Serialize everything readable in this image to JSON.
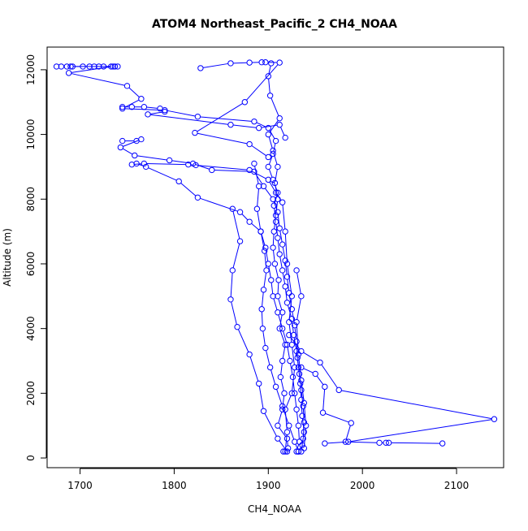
{
  "chart_data": {
    "type": "line",
    "title": "ATOM4 Northeast_Pacific_2 CH4_NOAA",
    "xlabel": "CH4_NOAA",
    "ylabel": "Altitude (m)",
    "xlim": [
      1665,
      2150
    ],
    "ylim": [
      -300,
      12700
    ],
    "xticks": [
      1700,
      1800,
      1900,
      2000,
      2100
    ],
    "yticks": [
      0,
      2000,
      4000,
      6000,
      8000,
      10000,
      12000
    ],
    "grid": false,
    "color": "#0000ff",
    "marker": "open-circle",
    "series": [
      {
        "values": [
          {
            "x": 1916,
            "y": 200
          },
          {
            "x": 1921,
            "y": 300
          },
          {
            "x": 1920,
            "y": 600
          },
          {
            "x": 1910,
            "y": 1000
          },
          {
            "x": 1915,
            "y": 1500
          },
          {
            "x": 1917,
            "y": 2000
          },
          {
            "x": 1913,
            "y": 2500
          },
          {
            "x": 1915,
            "y": 3000
          },
          {
            "x": 1918,
            "y": 3500
          },
          {
            "x": 1912,
            "y": 4000
          },
          {
            "x": 1915,
            "y": 4500
          },
          {
            "x": 1910,
            "y": 5000
          },
          {
            "x": 1911,
            "y": 5500
          },
          {
            "x": 1907,
            "y": 6000
          },
          {
            "x": 1905,
            "y": 6500
          },
          {
            "x": 1906,
            "y": 7000
          },
          {
            "x": 1908,
            "y": 7500
          },
          {
            "x": 1910,
            "y": 8000
          },
          {
            "x": 1907,
            "y": 8500
          },
          {
            "x": 1910,
            "y": 9000
          },
          {
            "x": 1905,
            "y": 9500
          },
          {
            "x": 1900,
            "y": 10000
          },
          {
            "x": 1912,
            "y": 10500
          },
          {
            "x": 1902,
            "y": 11200
          },
          {
            "x": 1900,
            "y": 11800
          },
          {
            "x": 1903,
            "y": 12200
          }
        ]
      },
      {
        "values": [
          {
            "x": 1690,
            "y": 12100
          },
          {
            "x": 1715,
            "y": 12100
          },
          {
            "x": 1735,
            "y": 12100
          },
          {
            "x": 1688,
            "y": 11900
          },
          {
            "x": 1750,
            "y": 11500
          },
          {
            "x": 1765,
            "y": 11100
          },
          {
            "x": 1745,
            "y": 10800
          },
          {
            "x": 1790,
            "y": 10750
          },
          {
            "x": 1825,
            "y": 10550
          },
          {
            "x": 1885,
            "y": 10400
          },
          {
            "x": 1900,
            "y": 10200
          },
          {
            "x": 1908,
            "y": 9800
          },
          {
            "x": 1905,
            "y": 9400
          },
          {
            "x": 1900,
            "y": 9000
          },
          {
            "x": 1905,
            "y": 8600
          },
          {
            "x": 1910,
            "y": 8200
          },
          {
            "x": 1906,
            "y": 7800
          },
          {
            "x": 1908,
            "y": 7300
          },
          {
            "x": 1910,
            "y": 6800
          },
          {
            "x": 1912,
            "y": 6300
          },
          {
            "x": 1915,
            "y": 5800
          },
          {
            "x": 1918,
            "y": 5300
          },
          {
            "x": 1920,
            "y": 4800
          },
          {
            "x": 1925,
            "y": 4300
          },
          {
            "x": 1927,
            "y": 3800
          },
          {
            "x": 1930,
            "y": 3300
          },
          {
            "x": 1932,
            "y": 2800
          },
          {
            "x": 1934,
            "y": 2300
          },
          {
            "x": 1935,
            "y": 1800
          },
          {
            "x": 1936,
            "y": 1300
          },
          {
            "x": 1938,
            "y": 800
          },
          {
            "x": 1936,
            "y": 400
          },
          {
            "x": 1932,
            "y": 200
          }
        ]
      },
      {
        "values": [
          {
            "x": 1745,
            "y": 9800
          },
          {
            "x": 1760,
            "y": 9800
          },
          {
            "x": 1765,
            "y": 9850
          },
          {
            "x": 1743,
            "y": 9600
          },
          {
            "x": 1758,
            "y": 9350
          },
          {
            "x": 1795,
            "y": 9200
          },
          {
            "x": 1820,
            "y": 9100
          },
          {
            "x": 1840,
            "y": 8900
          },
          {
            "x": 1885,
            "y": 8850
          },
          {
            "x": 1895,
            "y": 8400
          },
          {
            "x": 1905,
            "y": 8000
          },
          {
            "x": 1910,
            "y": 7600
          },
          {
            "x": 1912,
            "y": 7100
          },
          {
            "x": 1915,
            "y": 6600
          },
          {
            "x": 1918,
            "y": 6100
          },
          {
            "x": 1920,
            "y": 5600
          },
          {
            "x": 1922,
            "y": 5100
          },
          {
            "x": 1925,
            "y": 4600
          },
          {
            "x": 1928,
            "y": 4100
          },
          {
            "x": 1930,
            "y": 3600
          },
          {
            "x": 1931,
            "y": 3100
          },
          {
            "x": 1933,
            "y": 2600
          },
          {
            "x": 1935,
            "y": 2100
          },
          {
            "x": 1937,
            "y": 1600
          },
          {
            "x": 1938,
            "y": 1100
          },
          {
            "x": 1937,
            "y": 600
          },
          {
            "x": 1935,
            "y": 200
          }
        ]
      },
      {
        "values": [
          {
            "x": 1760,
            "y": 9100
          },
          {
            "x": 1770,
            "y": 9000
          },
          {
            "x": 1805,
            "y": 8550
          },
          {
            "x": 1825,
            "y": 8050
          },
          {
            "x": 1870,
            "y": 7600
          },
          {
            "x": 1880,
            "y": 7300
          },
          {
            "x": 1892,
            "y": 7000
          },
          {
            "x": 1897,
            "y": 6500
          },
          {
            "x": 1900,
            "y": 6000
          },
          {
            "x": 1903,
            "y": 5500
          },
          {
            "x": 1905,
            "y": 5000
          },
          {
            "x": 1910,
            "y": 4500
          },
          {
            "x": 1915,
            "y": 4000
          },
          {
            "x": 1920,
            "y": 3500
          },
          {
            "x": 1923,
            "y": 3000
          },
          {
            "x": 1926,
            "y": 2500
          },
          {
            "x": 1928,
            "y": 2000
          },
          {
            "x": 1930,
            "y": 1500
          },
          {
            "x": 1932,
            "y": 1000
          },
          {
            "x": 1933,
            "y": 500
          },
          {
            "x": 1930,
            "y": 200
          }
        ]
      },
      {
        "values": [
          {
            "x": 1862,
            "y": 7700
          },
          {
            "x": 1870,
            "y": 6700
          },
          {
            "x": 1862,
            "y": 5800
          },
          {
            "x": 1860,
            "y": 4900
          },
          {
            "x": 1867,
            "y": 4050
          },
          {
            "x": 1880,
            "y": 3200
          },
          {
            "x": 1890,
            "y": 2300
          },
          {
            "x": 1895,
            "y": 1450
          },
          {
            "x": 1910,
            "y": 600
          },
          {
            "x": 1920,
            "y": 200
          }
        ]
      },
      {
        "values": [
          {
            "x": 1885,
            "y": 9100
          },
          {
            "x": 1890,
            "y": 8400
          },
          {
            "x": 1888,
            "y": 7700
          },
          {
            "x": 1892,
            "y": 7000
          },
          {
            "x": 1896,
            "y": 6400
          },
          {
            "x": 1898,
            "y": 5800
          },
          {
            "x": 1895,
            "y": 5200
          },
          {
            "x": 1893,
            "y": 4600
          },
          {
            "x": 1894,
            "y": 4000
          },
          {
            "x": 1897,
            "y": 3400
          },
          {
            "x": 1902,
            "y": 2800
          },
          {
            "x": 1908,
            "y": 2200
          },
          {
            "x": 1915,
            "y": 1600
          },
          {
            "x": 1922,
            "y": 1000
          },
          {
            "x": 1928,
            "y": 500
          },
          {
            "x": 1932,
            "y": 200
          }
        ]
      },
      {
        "values": [
          {
            "x": 1922,
            "y": 3800
          },
          {
            "x": 1935,
            "y": 3300
          },
          {
            "x": 1955,
            "y": 2950
          },
          {
            "x": 1975,
            "y": 2100
          },
          {
            "x": 2140,
            "y": 1200
          },
          {
            "x": 1985,
            "y": 500
          },
          {
            "x": 1960,
            "y": 450
          }
        ]
      },
      {
        "values": [
          {
            "x": 1935,
            "y": 2800
          },
          {
            "x": 1950,
            "y": 2600
          },
          {
            "x": 1960,
            "y": 2200
          },
          {
            "x": 1958,
            "y": 1400
          },
          {
            "x": 1988,
            "y": 1080
          },
          {
            "x": 1982,
            "y": 500
          },
          {
            "x": 2018,
            "y": 470
          },
          {
            "x": 2025,
            "y": 470
          },
          {
            "x": 2028,
            "y": 470
          },
          {
            "x": 2085,
            "y": 450
          }
        ]
      },
      {
        "values": [
          {
            "x": 1828,
            "y": 12050
          },
          {
            "x": 1860,
            "y": 12200
          },
          {
            "x": 1880,
            "y": 12220
          },
          {
            "x": 1893,
            "y": 12230
          },
          {
            "x": 1897,
            "y": 12230
          },
          {
            "x": 1912,
            "y": 12220
          },
          {
            "x": 1875,
            "y": 11000
          },
          {
            "x": 1822,
            "y": 10050
          },
          {
            "x": 1880,
            "y": 9700
          },
          {
            "x": 1900,
            "y": 9300
          }
        ]
      },
      {
        "values": [
          {
            "x": 1675,
            "y": 12100
          },
          {
            "x": 1680,
            "y": 12100
          },
          {
            "x": 1686,
            "y": 12100
          },
          {
            "x": 1692,
            "y": 12100
          },
          {
            "x": 1703,
            "y": 12100
          },
          {
            "x": 1710,
            "y": 12100
          },
          {
            "x": 1720,
            "y": 12100
          },
          {
            "x": 1725,
            "y": 12100
          },
          {
            "x": 1733,
            "y": 12100
          },
          {
            "x": 1737,
            "y": 12100
          },
          {
            "x": 1740,
            "y": 12100
          }
        ]
      },
      {
        "values": [
          {
            "x": 1745,
            "y": 10850
          },
          {
            "x": 1755,
            "y": 10850
          },
          {
            "x": 1768,
            "y": 10850
          },
          {
            "x": 1785,
            "y": 10800
          },
          {
            "x": 1790,
            "y": 10700
          },
          {
            "x": 1772,
            "y": 10620
          },
          {
            "x": 1860,
            "y": 10300
          },
          {
            "x": 1890,
            "y": 10200
          },
          {
            "x": 1912,
            "y": 10300
          },
          {
            "x": 1918,
            "y": 9900
          }
        ]
      },
      {
        "values": [
          {
            "x": 1755,
            "y": 9070
          },
          {
            "x": 1768,
            "y": 9100
          },
          {
            "x": 1815,
            "y": 9070
          },
          {
            "x": 1823,
            "y": 9050
          },
          {
            "x": 1880,
            "y": 8900
          },
          {
            "x": 1900,
            "y": 8600
          },
          {
            "x": 1908,
            "y": 8200
          },
          {
            "x": 1915,
            "y": 7900
          },
          {
            "x": 1918,
            "y": 7000
          },
          {
            "x": 1920,
            "y": 6000
          },
          {
            "x": 1925,
            "y": 5000
          },
          {
            "x": 1922,
            "y": 4200
          },
          {
            "x": 1925,
            "y": 3500
          },
          {
            "x": 1928,
            "y": 2800
          },
          {
            "x": 1925,
            "y": 2000
          },
          {
            "x": 1918,
            "y": 1500
          },
          {
            "x": 1920,
            "y": 800
          },
          {
            "x": 1918,
            "y": 200
          }
        ]
      },
      {
        "values": [
          {
            "x": 1930,
            "y": 5800
          },
          {
            "x": 1935,
            "y": 5000
          },
          {
            "x": 1930,
            "y": 4200
          },
          {
            "x": 1932,
            "y": 3200
          },
          {
            "x": 1935,
            "y": 2400
          },
          {
            "x": 1938,
            "y": 1700
          },
          {
            "x": 1940,
            "y": 1000
          },
          {
            "x": 1938,
            "y": 300
          }
        ]
      }
    ]
  }
}
